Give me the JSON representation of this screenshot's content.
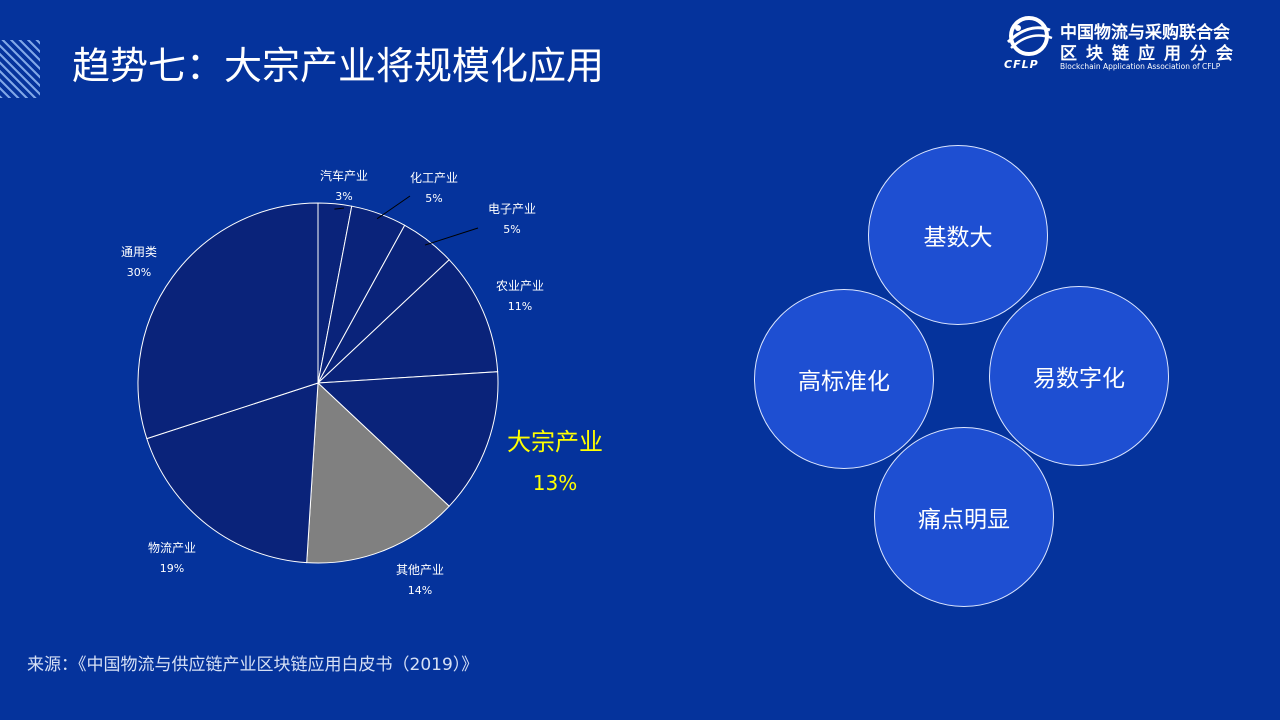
{
  "header": {
    "title": "趋势七：大宗产业将规模化应用"
  },
  "logo": {
    "cn_line1": "中国物流与采购联合会",
    "cn_line2": "区块链应用分会",
    "abbr": "CFLP",
    "en": "Blockchain Application Association of CFLP"
  },
  "chart_data": {
    "type": "pie",
    "title": "",
    "slices": [
      {
        "label": "汽车产业",
        "value": 3
      },
      {
        "label": "化工产业",
        "value": 5
      },
      {
        "label": "电子产业",
        "value": 5
      },
      {
        "label": "农业产业",
        "value": 11
      },
      {
        "label": "大宗产业",
        "value": 13
      },
      {
        "label": "其他产业",
        "value": 14
      },
      {
        "label": "物流产业",
        "value": 19
      },
      {
        "label": "通用类",
        "value": 30
      }
    ],
    "value_labels": [
      "3%",
      "5%",
      "5%",
      "11%",
      "13%",
      "14%",
      "19%",
      "30%"
    ],
    "highlight": "大宗产业",
    "colors": {
      "default": "#0a237a",
      "other": "#808080",
      "highlight_text": "#ffff00",
      "stroke": "#ffffff"
    }
  },
  "traits": {
    "top": "基数大",
    "left": "高标准化",
    "right": "易数字化",
    "bottom": "痛点明显"
  },
  "source": "来源：《中国物流与供应链产业区块链应用白皮书（2019）》"
}
